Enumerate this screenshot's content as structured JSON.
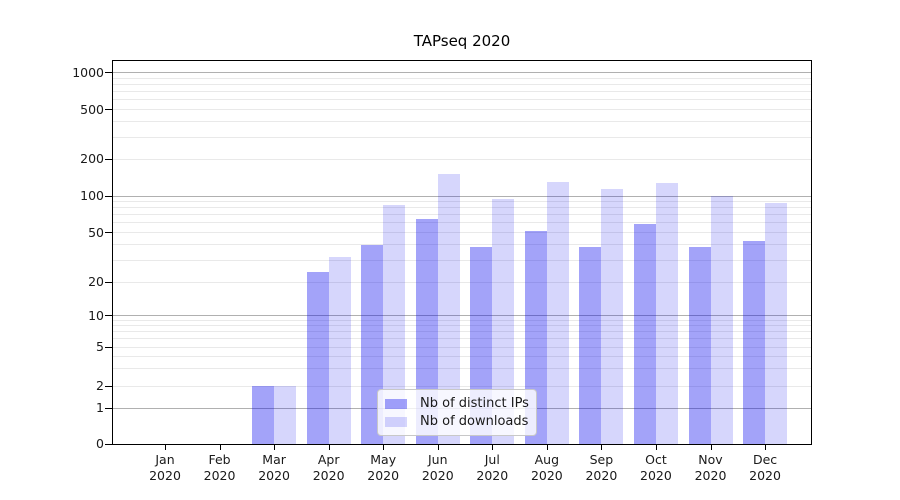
{
  "chart_data": {
    "type": "bar",
    "title": "TAPseq 2020",
    "categories": [
      "Jan",
      "Feb",
      "Mar",
      "Apr",
      "May",
      "Jun",
      "Jul",
      "Aug",
      "Sep",
      "Oct",
      "Nov",
      "Dec"
    ],
    "category_year": "2020",
    "series": [
      {
        "name": "Nb of distinct IPs",
        "color": "rgba(0,0,238,0.36)",
        "values": [
          0,
          0,
          2,
          24,
          40,
          65,
          38,
          51,
          38,
          59,
          38,
          43
        ]
      },
      {
        "name": "Nb of downloads",
        "color": "rgba(0,0,238,0.16)",
        "values": [
          0,
          0,
          2,
          32,
          85,
          150,
          95,
          130,
          115,
          127,
          100,
          88
        ]
      }
    ],
    "yscale": "symlog",
    "ylim": [
      0,
      1245
    ],
    "yticks": [
      0,
      1,
      2,
      5,
      10,
      20,
      50,
      100,
      200,
      500,
      1000
    ],
    "ytick_labels": [
      "0",
      "1",
      "2",
      "5",
      "10",
      "20",
      "50",
      "100",
      "200",
      "500",
      "1000"
    ],
    "grid_major": [
      1,
      10,
      100,
      1000
    ],
    "grid_minor": [
      2,
      3,
      4,
      5,
      6,
      7,
      8,
      9,
      20,
      30,
      40,
      50,
      60,
      70,
      80,
      90,
      200,
      300,
      400,
      500,
      600,
      700,
      800,
      900
    ],
    "legend_position": "lower center",
    "colors": {
      "grid_major": "#b0b0b0",
      "grid_minor": "#e9e9e9",
      "spine": "#000000",
      "text": "#1a1a1a",
      "background": "#ffffff"
    }
  }
}
